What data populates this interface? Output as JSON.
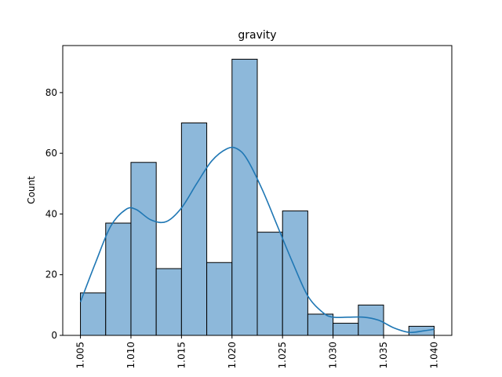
{
  "chart_data": {
    "type": "bar",
    "subtype": "histogram-with-kde",
    "title": "gravity",
    "xlabel": "",
    "ylabel": "Count",
    "xlim": [
      1.00325,
      1.04175
    ],
    "ylim": [
      0,
      95.5
    ],
    "xticks": [
      "1.005",
      "1.010",
      "1.015",
      "1.020",
      "1.025",
      "1.030",
      "1.035",
      "1.040"
    ],
    "yticks": [
      "0",
      "20",
      "40",
      "60",
      "80"
    ],
    "bin_edges": [
      1.005,
      1.0075,
      1.01,
      1.0125,
      1.015,
      1.0175,
      1.02,
      1.0225,
      1.025,
      1.0275,
      1.03,
      1.0325,
      1.035,
      1.0375,
      1.04
    ],
    "counts": [
      14,
      37,
      57,
      22,
      70,
      24,
      91,
      34,
      41,
      7,
      4,
      10,
      0,
      3
    ],
    "kde": {
      "x": [
        1.005,
        1.0065,
        1.008,
        1.0095,
        1.0105,
        1.012,
        1.0135,
        1.015,
        1.0165,
        1.018,
        1.0195,
        1.0205,
        1.0215,
        1.023,
        1.0245,
        1.026,
        1.0275,
        1.029,
        1.03,
        1.0315,
        1.033,
        1.0345,
        1.036,
        1.0375,
        1.039,
        1.04
      ],
      "y": [
        11,
        24,
        36,
        41.5,
        41.5,
        38,
        37.5,
        42,
        50,
        57.5,
        61.5,
        61.5,
        58,
        48,
        36,
        24,
        13,
        7.5,
        6,
        6,
        6,
        5,
        2.5,
        1,
        1.5,
        2
      ]
    },
    "colors": {
      "bar_fill": "#8db8da",
      "bar_edge": "#000000",
      "kde_line": "#1f77b4"
    },
    "grid": false,
    "legend": "none"
  }
}
